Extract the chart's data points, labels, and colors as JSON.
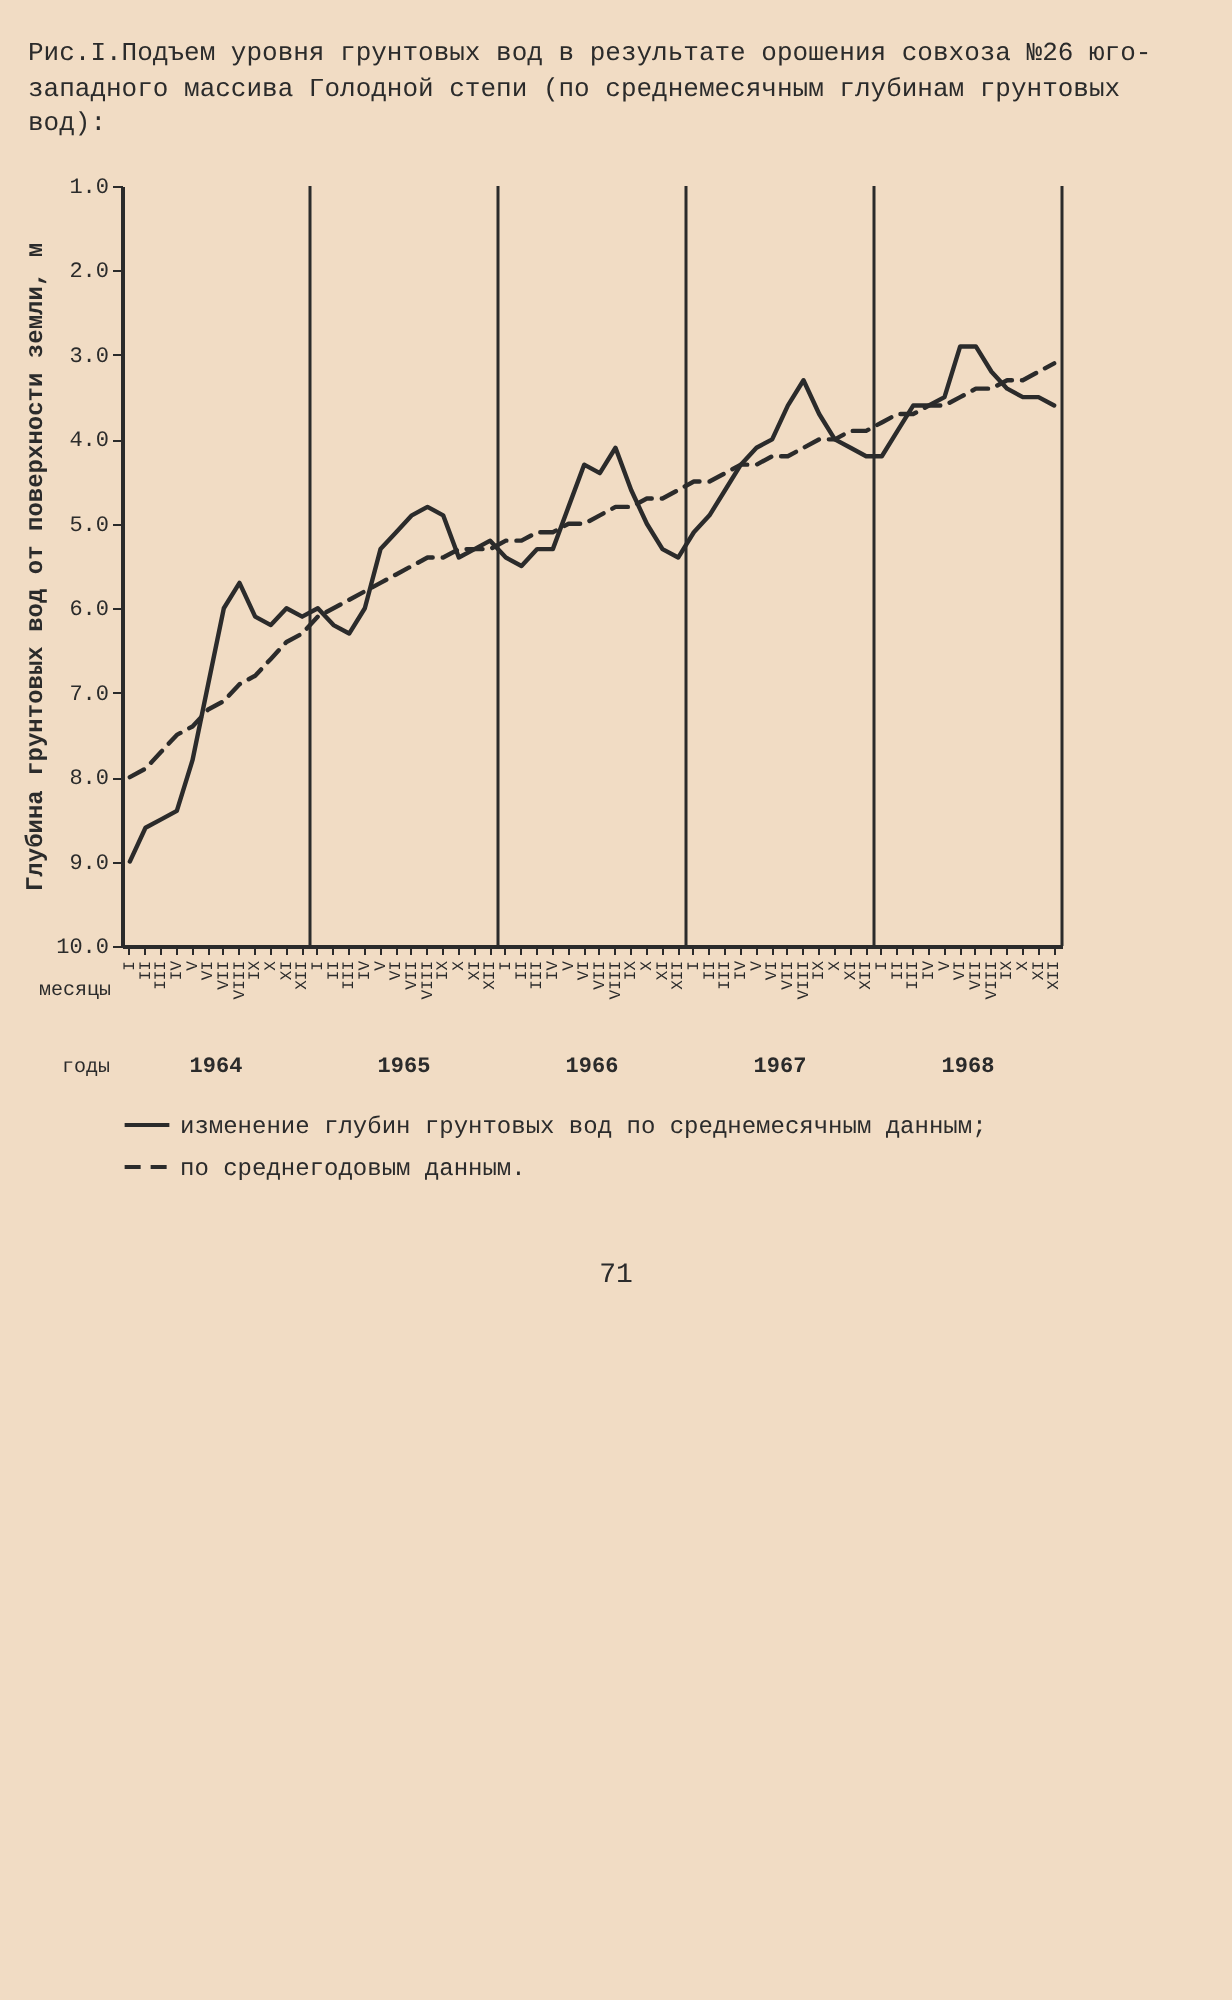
{
  "chart_data": {
    "type": "line",
    "title": "Рис.I.Подъем уровня грунтовых вод в результате орошения совхоза №26 юго-западного массива Голодной степи (по среднемесячным глубинам грунтовых вод):",
    "xlabel": "месяцы",
    "ylabel": "Глубина грунтовых вод от поверхности земли, м",
    "categories": [
      "I",
      "II",
      "III",
      "IV",
      "V",
      "VI",
      "VII",
      "VIII",
      "IX",
      "X",
      "XI",
      "XII",
      "I",
      "II",
      "III",
      "IV",
      "V",
      "VI",
      "VII",
      "VIII",
      "IX",
      "X",
      "XI",
      "XII",
      "I",
      "II",
      "III",
      "IV",
      "V",
      "VI",
      "VII",
      "VIII",
      "IX",
      "X",
      "XI",
      "XII",
      "I",
      "II",
      "III",
      "IV",
      "V",
      "VI",
      "VII",
      "VIII",
      "IX",
      "X",
      "XI",
      "XII",
      "I",
      "II",
      "III",
      "IV",
      "V",
      "VI",
      "VII",
      "VIII",
      "IX",
      "X",
      "XI",
      "XII"
    ],
    "ylim": [
      10,
      1
    ],
    "yticks": [
      {
        "value": 10,
        "label": "10.0"
      },
      {
        "value": 9,
        "label": "9.0"
      },
      {
        "value": 8,
        "label": "8.0"
      },
      {
        "value": 7,
        "label": "7.0"
      },
      {
        "value": 6,
        "label": "6.0"
      },
      {
        "value": 5,
        "label": "5.0"
      },
      {
        "value": 4,
        "label": "4.0"
      },
      {
        "value": 3,
        "label": "3.0"
      },
      {
        "value": 2,
        "label": "2.0"
      },
      {
        "value": 1,
        "label": "1.0"
      }
    ],
    "legend": "bottom",
    "marker": "none",
    "annotations": [
      "годы",
      "1964",
      "1965",
      "1966",
      "1967",
      "1968",
      "71"
    ],
    "series": [
      {
        "name": "изменение глубин грунтовых вод по среднемесячным данным;",
        "color": "#2b2b2b",
        "line_style": "solid",
        "values": [
          9.0,
          8.6,
          8.5,
          8.4,
          7.8,
          6.9,
          6.0,
          5.7,
          6.1,
          6.2,
          6.0,
          6.1,
          6.0,
          6.2,
          6.3,
          6.0,
          5.3,
          5.1,
          4.9,
          4.8,
          4.9,
          5.4,
          5.3,
          5.2,
          5.4,
          5.5,
          5.3,
          5.3,
          4.8,
          4.3,
          4.4,
          4.1,
          4.6,
          5.0,
          5.3,
          5.4,
          5.1,
          4.9,
          4.6,
          4.3,
          4.1,
          4.0,
          3.6,
          3.3,
          3.7,
          4.0,
          4.1,
          4.2,
          4.2,
          3.9,
          3.6,
          3.6,
          3.5,
          2.9,
          2.9,
          3.2,
          3.4,
          3.5,
          3.5,
          3.6
        ]
      },
      {
        "name": "по среднегодовым данным.",
        "color": "#2b2b2b",
        "line_style": "dashed",
        "values": [
          8.0,
          7.9,
          7.7,
          7.5,
          7.4,
          7.2,
          7.1,
          6.9,
          6.8,
          6.6,
          6.4,
          6.3,
          6.1,
          6.0,
          5.9,
          5.8,
          5.7,
          5.6,
          5.5,
          5.4,
          5.4,
          5.3,
          5.3,
          5.3,
          5.2,
          5.2,
          5.1,
          5.1,
          5.0,
          5.0,
          4.9,
          4.8,
          4.8,
          4.7,
          4.7,
          4.6,
          4.5,
          4.5,
          4.4,
          4.3,
          4.3,
          4.2,
          4.2,
          4.1,
          4.0,
          4.0,
          3.9,
          3.9,
          3.8,
          3.7,
          3.7,
          3.6,
          3.6,
          3.5,
          3.4,
          3.4,
          3.3,
          3.3,
          3.2,
          3.1
        ]
      }
    ]
  }
}
